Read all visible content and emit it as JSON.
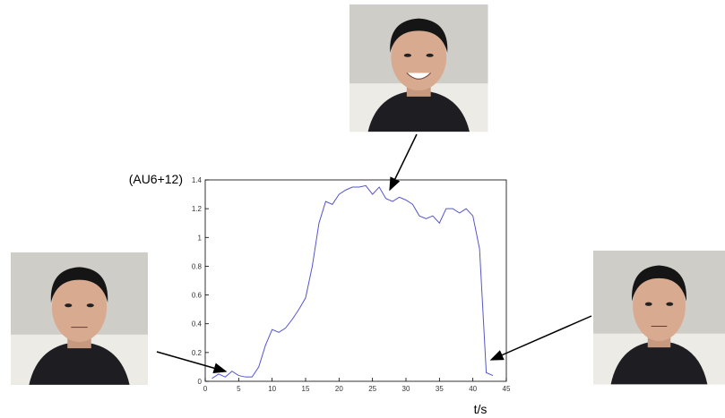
{
  "chart_data": {
    "type": "line",
    "ylabel": "(AU6+12)",
    "xlabel": "t/s",
    "x": [
      1,
      2,
      3,
      4,
      5,
      6,
      7,
      8,
      9,
      10,
      11,
      12,
      13,
      14,
      15,
      16,
      17,
      18,
      19,
      20,
      21,
      22,
      23,
      24,
      25,
      26,
      27,
      28,
      29,
      30,
      31,
      32,
      33,
      34,
      35,
      36,
      37,
      38,
      39,
      40,
      41,
      42,
      43
    ],
    "series": [
      {
        "color": "#5555cc",
        "values": [
          0.02,
          0.05,
          0.03,
          0.07,
          0.04,
          0.03,
          0.03,
          0.1,
          0.25,
          0.36,
          0.34,
          0.37,
          0.43,
          0.5,
          0.58,
          0.8,
          1.1,
          1.25,
          1.23,
          1.3,
          1.33,
          1.35,
          1.35,
          1.36,
          1.3,
          1.35,
          1.27,
          1.25,
          1.28,
          1.26,
          1.23,
          1.15,
          1.13,
          1.15,
          1.1,
          1.2,
          1.2,
          1.17,
          1.2,
          1.15,
          0.92,
          0.06,
          0.04
        ]
      }
    ],
    "xlim": [
      0,
      45
    ],
    "xticks": [
      0,
      5,
      10,
      15,
      20,
      25,
      30,
      35,
      40,
      45
    ],
    "ylim": [
      0,
      1.4
    ],
    "yticks": [
      0,
      0.2,
      0.4,
      0.6,
      0.8,
      1,
      1.2,
      1.4
    ]
  }
}
